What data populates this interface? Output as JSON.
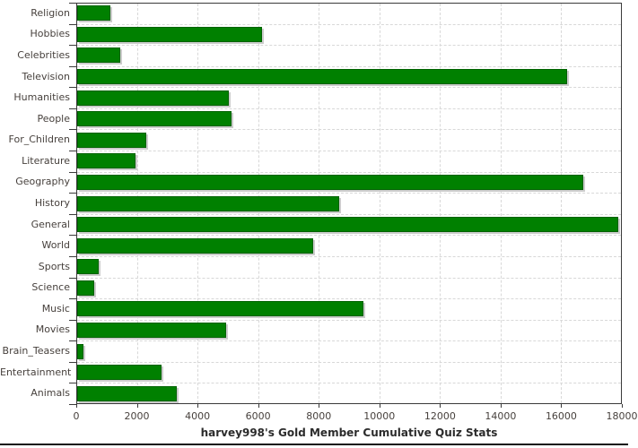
{
  "chart_data": {
    "type": "bar",
    "orientation": "horizontal",
    "title": "harvey998's Gold Member Cumulative Quiz Stats",
    "categories": [
      "Religion",
      "Hobbies",
      "Celebrities",
      "Television",
      "Humanities",
      "People",
      "For_Children",
      "Literature",
      "Geography",
      "History",
      "General",
      "World",
      "Sports",
      "Science",
      "Music",
      "Movies",
      "Brain_Teasers",
      "Entertainment",
      "Animals"
    ],
    "values": [
      1100,
      6100,
      1430,
      16150,
      5000,
      5100,
      2270,
      1920,
      16700,
      8630,
      17840,
      7780,
      700,
      560,
      9440,
      4910,
      200,
      2780,
      3290
    ],
    "xlabel": "",
    "ylabel": "",
    "xlim": [
      0,
      18000
    ],
    "x_ticks": [
      0,
      2000,
      4000,
      6000,
      8000,
      10000,
      12000,
      14000,
      16000,
      18000
    ],
    "grid": "dashed",
    "legend": "none",
    "colors": {
      "bar_fill": "#008000",
      "bar_border": "#006200",
      "bar_shadow": "#cccccc",
      "gridline": "#d8d8d8",
      "axis_text": "#47413d",
      "title_text": "#2b2b2b"
    }
  }
}
